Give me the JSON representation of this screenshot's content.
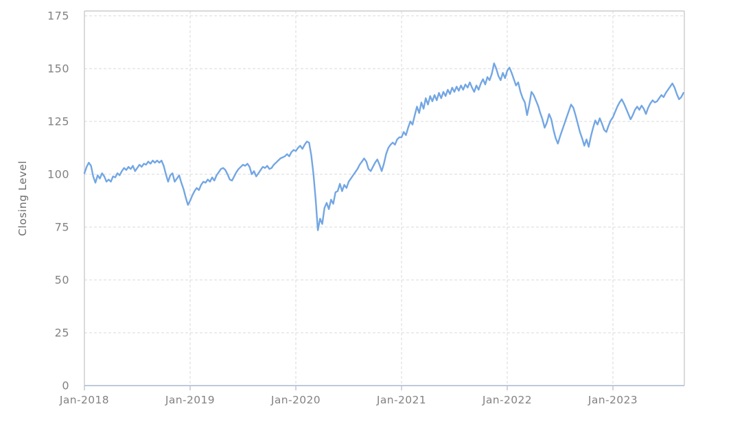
{
  "page": {
    "background": "#ffffff"
  },
  "chart_data": {
    "type": "line",
    "title": "",
    "xlabel": "",
    "ylabel": "Closing Level",
    "legend": "none",
    "grid": "dashed",
    "ylim": [
      0,
      175
    ],
    "yticks": [
      0,
      25,
      50,
      75,
      100,
      125,
      150,
      175
    ],
    "xticks": [
      {
        "label": "Jan-2018",
        "year": 2018
      },
      {
        "label": "Jan-2019",
        "year": 2019
      },
      {
        "label": "Jan-2020",
        "year": 2020
      },
      {
        "label": "Jan-2021",
        "year": 2021
      },
      {
        "label": "Jan-2022",
        "year": 2022
      },
      {
        "label": "Jan-2023",
        "year": 2023
      }
    ],
    "x_start_year": 2018,
    "points_per_year": 48,
    "series": [
      {
        "name": "Closing Level",
        "color": "#72a6e3",
        "values": [
          100.5,
          103.5,
          105.5,
          104,
          99,
          96,
          99.5,
          98,
          100.5,
          99,
          96.5,
          97.5,
          96.5,
          99,
          98.5,
          100.5,
          99.5,
          101.5,
          103,
          102,
          103.5,
          102.5,
          104,
          101.5,
          103,
          104.5,
          103.5,
          105,
          104.5,
          106,
          105,
          106.5,
          105.5,
          106.5,
          105.5,
          106.5,
          104,
          100,
          96.5,
          99.5,
          100.5,
          96.5,
          98,
          99.5,
          96,
          93,
          89,
          85.5,
          87.5,
          90,
          92,
          93.5,
          92.5,
          95,
          96.5,
          96,
          97.5,
          96.5,
          98.5,
          97,
          99.5,
          101,
          102.5,
          103,
          102,
          100,
          97.5,
          97,
          99,
          101,
          102.5,
          103.5,
          104.5,
          104,
          105,
          103.5,
          100,
          101.5,
          99,
          100.5,
          102,
          103.5,
          103,
          104,
          102.5,
          103,
          104.5,
          105.5,
          106.5,
          107.5,
          108,
          108.5,
          109.5,
          108.5,
          110.5,
          111.5,
          111,
          112.5,
          113.5,
          112,
          114,
          115.5,
          115,
          109,
          100,
          88,
          73.5,
          79,
          76.5,
          84,
          86.5,
          83.5,
          88,
          86,
          91.5,
          92,
          95.5,
          92,
          95,
          93.5,
          96.5,
          98,
          99.5,
          101,
          102.5,
          104.5,
          106,
          107.5,
          106,
          102.5,
          101.5,
          103.5,
          105.5,
          107,
          104.5,
          101.5,
          105,
          109.5,
          112.5,
          114,
          115,
          114,
          116.5,
          117.5,
          117.5,
          120,
          118.5,
          122,
          125,
          123.5,
          128,
          132,
          129,
          134,
          131,
          136,
          133,
          137,
          134.5,
          137.5,
          135,
          138.5,
          136,
          139,
          137,
          140,
          138,
          141,
          139,
          141.5,
          139.5,
          142,
          140,
          142.5,
          141,
          143.5,
          141,
          139,
          142,
          140,
          143,
          145,
          142.5,
          146,
          144.5,
          147.5,
          152.5,
          150,
          146.5,
          144.5,
          148,
          145.5,
          149,
          150.5,
          148,
          145,
          142,
          143.5,
          139,
          136,
          134,
          128,
          133,
          139,
          137.5,
          135,
          132.5,
          129,
          126,
          122,
          124.5,
          128.5,
          126,
          121,
          117,
          114.5,
          118,
          121,
          124,
          127,
          130,
          133,
          131.5,
          128,
          124,
          120,
          117,
          113.5,
          116.5,
          113,
          118,
          122,
          125.5,
          123.5,
          126.5,
          124,
          121,
          120,
          123,
          125.5,
          127,
          129.5,
          132,
          134,
          135.5,
          133.5,
          131,
          128.5,
          126,
          128,
          130.5,
          132,
          130.5,
          132.5,
          131,
          128.5,
          131.5,
          133.5,
          135,
          134,
          134.5,
          136,
          137.5,
          136.5,
          138.5,
          140,
          141.5,
          143,
          141,
          138,
          135.5,
          136.5,
          138.5
        ]
      }
    ],
    "style": {
      "line_color": "#72a6e3",
      "grid_color": "#d9d9d9",
      "border_color": "#cbcbcb",
      "axis_line_color": "#b3c3d6",
      "tick_mark_color": "#b7c3d2",
      "tick_label_color": "#828282",
      "axis_title_color": "#6b6b6b",
      "background_color": "#ffffff"
    }
  }
}
